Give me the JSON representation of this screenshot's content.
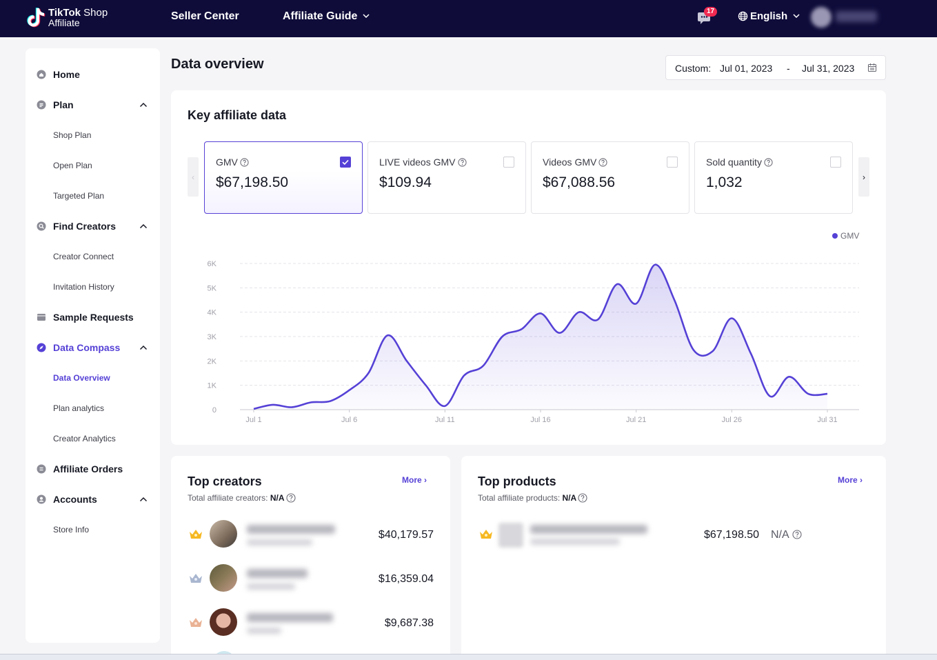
{
  "header": {
    "logo_brand": "TikTok",
    "logo_shop": "Shop",
    "logo_line2": "Affiliate",
    "nav": {
      "seller_center": "Seller Center",
      "affiliate_guide": "Affiliate Guide"
    },
    "message_count": "17",
    "language": "English",
    "colors": {
      "bar": "#0f0c3a",
      "badge": "#ef2950"
    }
  },
  "sidebar": {
    "home": "Home",
    "plan": {
      "label": "Plan",
      "children": [
        "Shop Plan",
        "Open Plan",
        "Targeted Plan"
      ]
    },
    "find_creators": {
      "label": "Find Creators",
      "children": [
        "Creator Connect",
        "Invitation History"
      ]
    },
    "sample_requests": "Sample Requests",
    "data_compass": {
      "label": "Data Compass",
      "children": [
        "Data Overview",
        "Plan analytics",
        "Creator Analytics"
      ]
    },
    "affiliate_orders": "Affiliate Orders",
    "accounts": {
      "label": "Accounts",
      "children": [
        "Store Info"
      ]
    },
    "accent": "#5541d6"
  },
  "page": {
    "title": "Data overview",
    "date_range": {
      "label": "Custom:",
      "start": "Jul 01, 2023",
      "separator": "-",
      "end": "Jul 31, 2023"
    }
  },
  "key_data": {
    "title": "Key affiliate data",
    "metrics": [
      {
        "label": "GMV",
        "value": "$67,198.50",
        "checked": true
      },
      {
        "label": "LIVE videos GMV",
        "value": "$109.94",
        "checked": false
      },
      {
        "label": "Videos GMV",
        "value": "$67,088.56",
        "checked": false
      },
      {
        "label": "Sold quantity",
        "value": "1,032",
        "checked": false
      }
    ],
    "prev_arrow": "‹",
    "next_arrow": "›"
  },
  "chart_data": {
    "type": "area",
    "title": "",
    "legend": [
      "GMV"
    ],
    "legend_position": "top-right",
    "x": [
      1,
      2,
      3,
      4,
      5,
      6,
      7,
      8,
      9,
      10,
      11,
      12,
      13,
      14,
      15,
      16,
      17,
      18,
      19,
      20,
      21,
      22,
      23,
      24,
      25,
      26,
      27,
      28,
      29,
      30,
      31
    ],
    "x_tick_values": [
      1,
      6,
      11,
      16,
      21,
      26,
      31
    ],
    "xticks": [
      "Jul 1",
      "Jul 6",
      "Jul 11",
      "Jul 16",
      "Jul 21",
      "Jul 26",
      "Jul 31"
    ],
    "series": [
      {
        "name": "GMV",
        "color": "#5541d6",
        "values": [
          30,
          200,
          100,
          300,
          350,
          800,
          1500,
          3050,
          2000,
          1000,
          150,
          1400,
          1800,
          3000,
          3300,
          3950,
          3150,
          4000,
          3700,
          5150,
          4350,
          5950,
          4500,
          2450,
          2400,
          3750,
          2300,
          550,
          1350,
          650,
          650
        ]
      }
    ],
    "ylim": [
      0,
      6000
    ],
    "yticks": [
      "0",
      "1K",
      "2K",
      "3K",
      "4K",
      "5K",
      "6K"
    ],
    "ytick_values": [
      0,
      1000,
      2000,
      3000,
      4000,
      5000,
      6000
    ],
    "grid": true
  },
  "top_creators": {
    "title": "Top creators",
    "more": "More",
    "subtitle_label": "Total affiliate creators:",
    "subtitle_value": "N/A",
    "rows": [
      {
        "rank": 1,
        "amount": "$40,179.57"
      },
      {
        "rank": 2,
        "amount": "$16,359.04"
      },
      {
        "rank": 3,
        "amount": "$9,687.38"
      }
    ]
  },
  "top_products": {
    "title": "Top products",
    "more": "More",
    "subtitle_label": "Total affiliate products:",
    "subtitle_value": "N/A",
    "rows": [
      {
        "rank": 1,
        "amount": "$67,198.50",
        "extra": "N/A"
      }
    ]
  }
}
